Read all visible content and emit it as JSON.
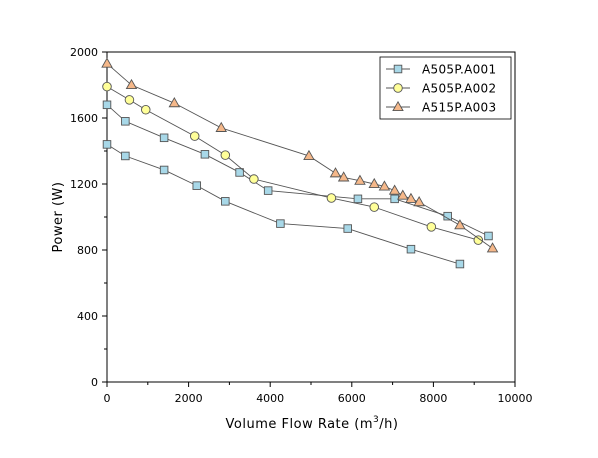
{
  "chart_data": {
    "type": "line",
    "xlabel_main": "Volume Flow Rate (m",
    "xlabel_sup": "3",
    "xlabel_tail": "/h)",
    "ylabel": "Power (W)",
    "xlim": [
      0,
      10000
    ],
    "ylim": [
      0,
      2000
    ],
    "x_ticks": [
      0,
      2000,
      4000,
      6000,
      8000,
      10000
    ],
    "y_ticks": [
      0,
      400,
      800,
      1200,
      1600,
      2000
    ],
    "grid": false,
    "legend_position": "top-right",
    "series": [
      {
        "name": "A505P.A001",
        "marker": "square",
        "color": "#a8d8e8",
        "x": [
          0,
          450,
          1400,
          2200,
          2900,
          4250,
          5900,
          7450,
          8650
        ],
        "y": [
          1440,
          1370,
          1285,
          1190,
          1095,
          960,
          930,
          805,
          715
        ]
      },
      {
        "name": "",
        "marker": "square",
        "color": "#a8d8e8",
        "x": [
          0,
          450,
          1400,
          2400,
          3250,
          3950,
          6150,
          7050,
          8350,
          9350
        ],
        "y": [
          1680,
          1580,
          1480,
          1380,
          1270,
          1160,
          1110,
          1110,
          1005,
          885
        ]
      },
      {
        "name": "A505P.A002",
        "marker": "circle",
        "color": "#ffff99",
        "x": [
          0,
          550,
          950,
          2150,
          2900,
          3600,
          5500,
          6550,
          7950,
          9100
        ],
        "y": [
          1790,
          1710,
          1650,
          1490,
          1375,
          1230,
          1115,
          1060,
          940,
          860
        ]
      },
      {
        "name": "A515P.A003",
        "marker": "triangle",
        "color": "#f5b88a",
        "x": [
          0,
          600,
          1650,
          2800,
          4950,
          5600,
          5800,
          6200,
          6550,
          6800,
          7050,
          7250,
          7450,
          7650,
          8650,
          9450
        ],
        "y": [
          1930,
          1800,
          1690,
          1540,
          1370,
          1265,
          1240,
          1220,
          1200,
          1185,
          1160,
          1130,
          1110,
          1090,
          950,
          810
        ]
      }
    ]
  }
}
